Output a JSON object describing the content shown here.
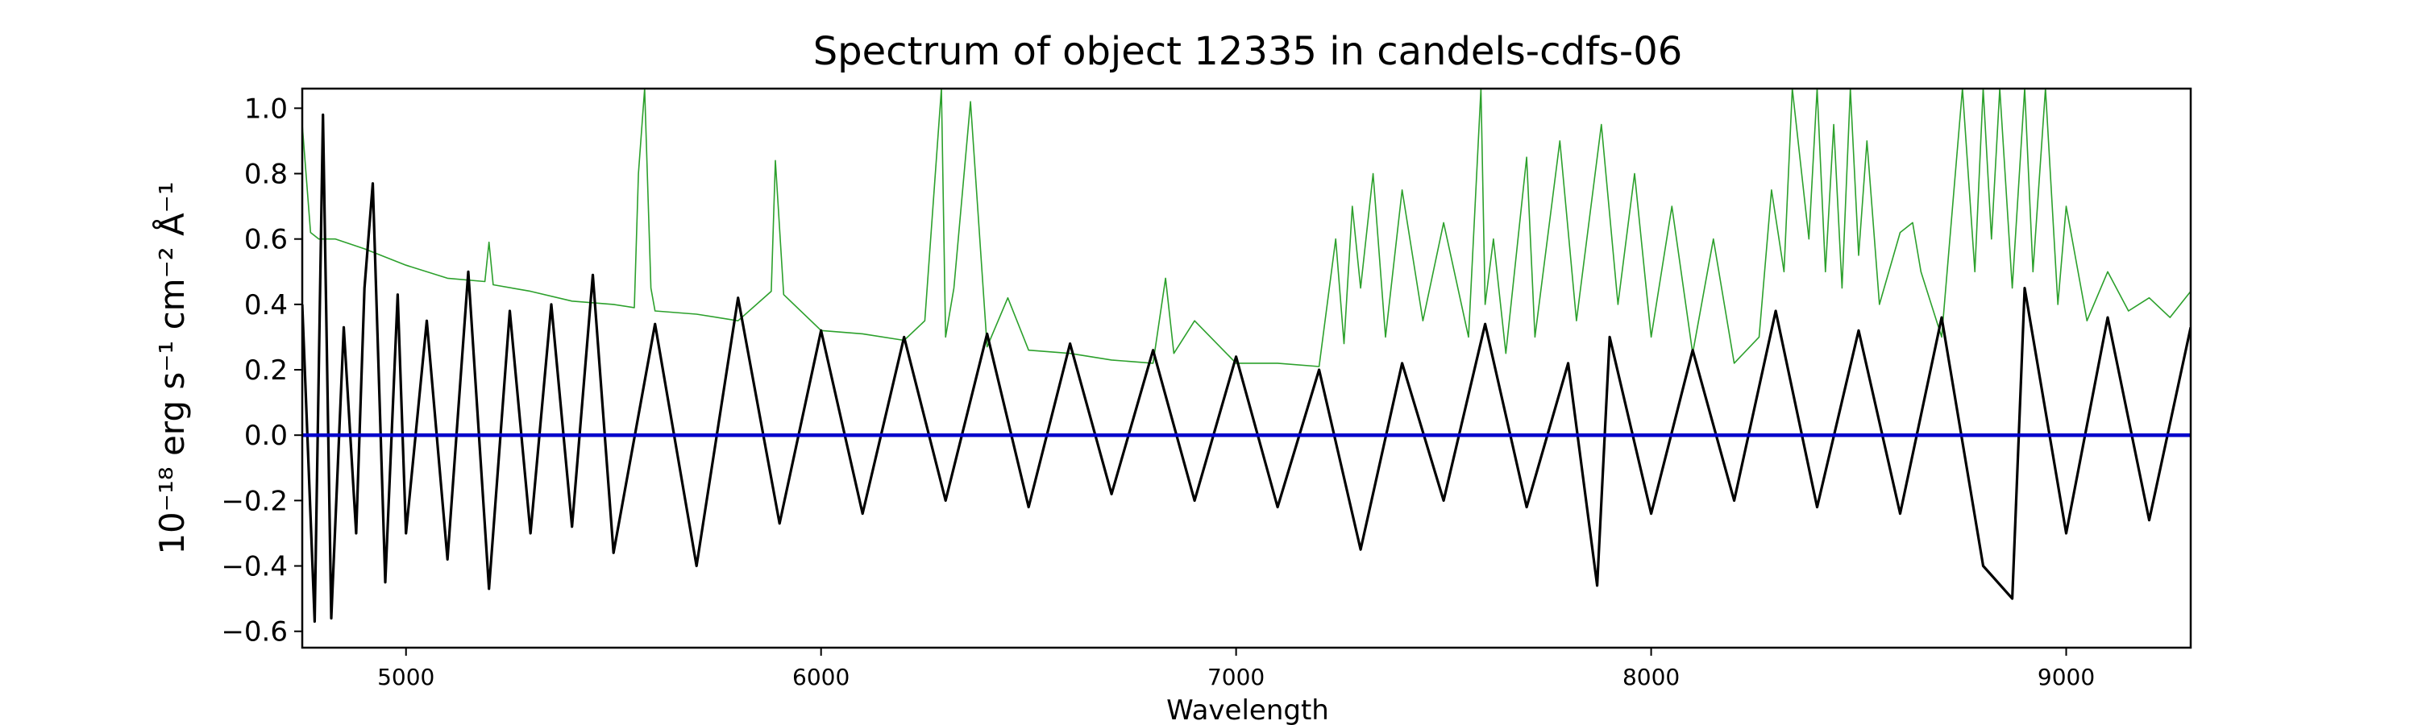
{
  "chart_data": {
    "type": "line",
    "title": "Spectrum of object 12335 in candels-cdfs-06",
    "xlabel": "Wavelength",
    "ylabel": "10⁻¹⁸ erg s⁻¹ cm⁻² Å⁻¹",
    "xlim": [
      4750,
      9300
    ],
    "ylim": [
      -0.65,
      1.06
    ],
    "x_ticks": [
      5000,
      6000,
      7000,
      8000,
      9000
    ],
    "y_ticks": [
      -0.6,
      -0.4,
      -0.2,
      0.0,
      0.2,
      0.4,
      0.6,
      0.8,
      1.0
    ],
    "x_tick_labels": [
      "5000",
      "6000",
      "7000",
      "8000",
      "9000"
    ],
    "y_tick_labels": [
      "−0.6",
      "−0.4",
      "−0.2",
      "0.0",
      "0.2",
      "0.4",
      "0.6",
      "0.8",
      "1.0"
    ],
    "grid": false,
    "colors": {
      "flux": "#000000",
      "error": "#2ca02c",
      "zero": "#0000cc"
    },
    "series": [
      {
        "role": "flux",
        "x": [
          4750,
          4780,
          4800,
          4820,
          4850,
          4880,
          4900,
          4920,
          4950,
          4980,
          5000,
          5050,
          5100,
          5150,
          5200,
          5250,
          5300,
          5350,
          5400,
          5450,
          5500,
          5600,
          5700,
          5800,
          5900,
          6000,
          6100,
          6200,
          6300,
          6400,
          6500,
          6600,
          6700,
          6800,
          6900,
          7000,
          7100,
          7200,
          7300,
          7400,
          7500,
          7600,
          7700,
          7800,
          7870,
          7900,
          8000,
          8100,
          8200,
          8300,
          8400,
          8500,
          8600,
          8700,
          8800,
          8870,
          8900,
          9000,
          9100,
          9200,
          9300
        ],
        "y": [
          0.4,
          -0.57,
          0.98,
          -0.56,
          0.33,
          -0.3,
          0.45,
          0.77,
          -0.45,
          0.43,
          -0.3,
          0.35,
          -0.38,
          0.5,
          -0.47,
          0.38,
          -0.3,
          0.4,
          -0.28,
          0.49,
          -0.36,
          0.34,
          -0.4,
          0.42,
          -0.27,
          0.32,
          -0.24,
          0.3,
          -0.2,
          0.31,
          -0.22,
          0.28,
          -0.18,
          0.26,
          -0.2,
          0.24,
          -0.22,
          0.2,
          -0.35,
          0.22,
          -0.2,
          0.34,
          -0.22,
          0.22,
          -0.46,
          0.3,
          -0.24,
          0.26,
          -0.2,
          0.38,
          -0.22,
          0.32,
          -0.24,
          0.36,
          -0.4,
          -0.5,
          0.45,
          -0.3,
          0.36,
          -0.26,
          0.33
        ]
      },
      {
        "role": "error",
        "x": [
          4750,
          4770,
          4790,
          4830,
          4900,
          5000,
          5100,
          5190,
          5200,
          5210,
          5300,
          5400,
          5500,
          5550,
          5560,
          5575,
          5590,
          5600,
          5700,
          5800,
          5880,
          5890,
          5910,
          6000,
          6100,
          6200,
          6250,
          6290,
          6300,
          6320,
          6360,
          6400,
          6450,
          6500,
          6600,
          6700,
          6800,
          6830,
          6850,
          6900,
          7000,
          7100,
          7200,
          7240,
          7260,
          7280,
          7300,
          7330,
          7360,
          7400,
          7450,
          7500,
          7560,
          7590,
          7600,
          7620,
          7650,
          7700,
          7720,
          7780,
          7820,
          7880,
          7920,
          7960,
          8000,
          8050,
          8100,
          8150,
          8200,
          8260,
          8290,
          8320,
          8340,
          8380,
          8400,
          8420,
          8440,
          8460,
          8480,
          8500,
          8520,
          8550,
          8600,
          8630,
          8650,
          8700,
          8750,
          8780,
          8800,
          8820,
          8840,
          8870,
          8900,
          8920,
          8950,
          8980,
          9000,
          9050,
          9100,
          9150,
          9200,
          9250,
          9300
        ],
        "y": [
          0.95,
          0.62,
          0.6,
          0.6,
          0.57,
          0.52,
          0.48,
          0.47,
          0.59,
          0.46,
          0.44,
          0.41,
          0.4,
          0.39,
          0.8,
          1.06,
          0.45,
          0.38,
          0.37,
          0.35,
          0.44,
          0.84,
          0.43,
          0.32,
          0.31,
          0.29,
          0.35,
          1.06,
          0.3,
          0.45,
          1.02,
          0.27,
          0.42,
          0.26,
          0.25,
          0.23,
          0.22,
          0.48,
          0.25,
          0.35,
          0.22,
          0.22,
          0.21,
          0.6,
          0.28,
          0.7,
          0.45,
          0.8,
          0.3,
          0.75,
          0.35,
          0.65,
          0.3,
          1.06,
          0.4,
          0.6,
          0.25,
          0.85,
          0.3,
          0.9,
          0.35,
          0.95,
          0.4,
          0.8,
          0.3,
          0.7,
          0.25,
          0.6,
          0.22,
          0.3,
          0.75,
          0.5,
          1.06,
          0.6,
          1.06,
          0.5,
          0.95,
          0.45,
          1.06,
          0.55,
          0.9,
          0.4,
          0.62,
          0.65,
          0.5,
          0.3,
          1.06,
          0.5,
          1.06,
          0.6,
          1.06,
          0.45,
          1.06,
          0.5,
          1.06,
          0.4,
          0.7,
          0.35,
          0.5,
          0.38,
          0.42,
          0.36,
          0.44
        ]
      },
      {
        "role": "zero",
        "x": [
          4750,
          9300
        ],
        "y": [
          0.0,
          0.0
        ]
      }
    ]
  }
}
